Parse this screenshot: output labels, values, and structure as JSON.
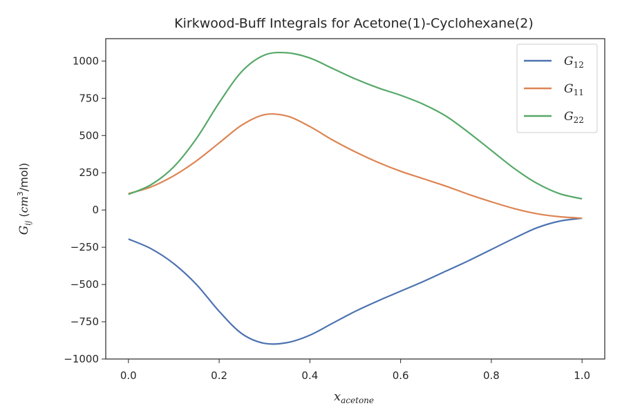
{
  "chart_data": {
    "type": "line",
    "title": "Kirkwood-Buff Integrals for Acetone(1)-Cyclohexane(2)",
    "xlabel": {
      "main": "x",
      "sub": "acetone"
    },
    "ylabel": {
      "main": "G",
      "sub": "ij",
      "unit_pre": " (",
      "unit_base": "cm",
      "unit_sup": "3",
      "unit_post": "/mol)"
    },
    "xlim": [
      -0.05,
      1.05
    ],
    "ylim": [
      -1000,
      1150
    ],
    "xticks": [
      0.0,
      0.2,
      0.4,
      0.6,
      0.8,
      1.0
    ],
    "xtick_labels": [
      "0.0",
      "0.2",
      "0.4",
      "0.6",
      "0.8",
      "1.0"
    ],
    "yticks": [
      -1000,
      -750,
      -500,
      -250,
      0,
      250,
      500,
      750,
      1000
    ],
    "ytick_labels": [
      "−1000",
      "−750",
      "−500",
      "−250",
      "0",
      "250",
      "500",
      "750",
      "1000"
    ],
    "grid": false,
    "legend_position": "top-right",
    "x": [
      0.0,
      0.05,
      0.1,
      0.15,
      0.2,
      0.25,
      0.3,
      0.35,
      0.4,
      0.45,
      0.5,
      0.55,
      0.6,
      0.65,
      0.7,
      0.75,
      0.8,
      0.85,
      0.9,
      0.95,
      1.0
    ],
    "series": [
      {
        "name": "G12",
        "label_main": "G",
        "label_sub": "12",
        "color": "#4c72b0",
        "values": [
          -195,
          -260,
          -360,
          -500,
          -680,
          -830,
          -895,
          -890,
          -840,
          -760,
          -680,
          -610,
          -545,
          -480,
          -410,
          -340,
          -265,
          -190,
          -120,
          -75,
          -55
        ]
      },
      {
        "name": "G11",
        "label_main": "G",
        "label_sub": "11",
        "color": "#dd8452",
        "values": [
          110,
          155,
          230,
          330,
          450,
          570,
          640,
          630,
          560,
          470,
          390,
          320,
          260,
          210,
          160,
          105,
          55,
          10,
          -25,
          -45,
          -55
        ]
      },
      {
        "name": "G22",
        "label_main": "G",
        "label_sub": "22",
        "color": "#55a868",
        "values": [
          105,
          170,
          290,
          480,
          720,
          930,
          1040,
          1055,
          1020,
          950,
          880,
          820,
          770,
          710,
          630,
          520,
          400,
          280,
          180,
          110,
          75
        ]
      }
    ]
  }
}
